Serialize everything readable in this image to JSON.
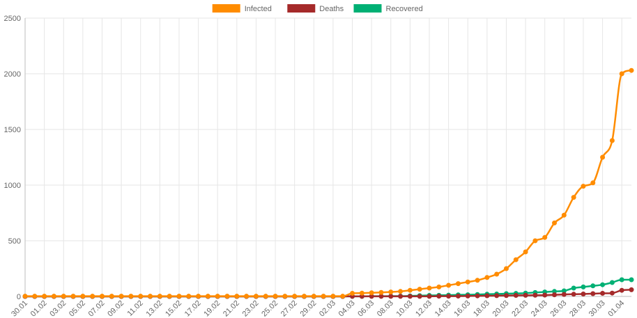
{
  "chart_data": {
    "type": "line",
    "x": [
      "30.01",
      "31.01",
      "01.02",
      "02.02",
      "03.02",
      "04.02",
      "05.02",
      "06.02",
      "07.02",
      "08.02",
      "09.02",
      "10.02",
      "11.02",
      "12.02",
      "13.02",
      "14.02",
      "15.02",
      "16.02",
      "17.02",
      "18.02",
      "19.02",
      "20.02",
      "21.02",
      "22.02",
      "23.02",
      "24.02",
      "25.02",
      "26.02",
      "27.02",
      "28.02",
      "29.02",
      "01.03",
      "02.03",
      "03.03",
      "04.03",
      "05.03",
      "06.03",
      "07.03",
      "08.03",
      "09.03",
      "10.03",
      "11.03",
      "12.03",
      "13.03",
      "14.03",
      "15.03",
      "16.03",
      "17.03",
      "18.03",
      "19.03",
      "20.03",
      "21.03",
      "22.03",
      "23.03",
      "24.03",
      "25.03",
      "26.03",
      "27.03",
      "28.03",
      "29.03",
      "30.03",
      "31.03",
      "01.04",
      "02.04"
    ],
    "xticks": [
      "30.01",
      "01.02",
      "03.02",
      "05.02",
      "07.02",
      "09.02",
      "11.02",
      "13.02",
      "15.02",
      "17.02",
      "19.02",
      "21.02",
      "23.02",
      "25.02",
      "27.02",
      "29.02",
      "02.03",
      "04.03",
      "06.03",
      "08.03",
      "10.03",
      "12.03",
      "14.03",
      "16.03",
      "18.03",
      "20.03",
      "22.03",
      "24.03",
      "26.03",
      "28.03",
      "30.03",
      "01.04"
    ],
    "series": [
      {
        "name": "Infected",
        "color": "#ff8c00",
        "values": [
          2,
          2,
          2,
          2,
          2,
          2,
          2,
          2,
          2,
          2,
          2,
          2,
          2,
          2,
          2,
          2,
          2,
          2,
          2,
          2,
          2,
          2,
          2,
          2,
          2,
          2,
          2,
          2,
          2,
          2,
          2,
          2,
          2,
          2,
          28,
          30,
          33,
          36,
          40,
          45,
          55,
          65,
          75,
          85,
          100,
          115,
          130,
          145,
          170,
          200,
          250,
          330,
          400,
          500,
          530,
          660,
          730,
          890,
          990,
          1020,
          1250,
          1400,
          2000,
          2030
        ]
      },
      {
        "name": "Deaths",
        "color": "#a52a2a",
        "values": [
          0,
          0,
          0,
          0,
          0,
          0,
          0,
          0,
          0,
          0,
          0,
          0,
          0,
          0,
          0,
          0,
          0,
          0,
          0,
          0,
          0,
          0,
          0,
          0,
          0,
          0,
          0,
          0,
          0,
          0,
          0,
          0,
          0,
          0,
          1,
          1,
          1,
          1,
          1,
          1,
          1,
          1,
          1,
          2,
          2,
          3,
          4,
          5,
          6,
          7,
          8,
          9,
          10,
          11,
          12,
          15,
          18,
          20,
          22,
          25,
          28,
          30,
          55,
          60
        ]
      },
      {
        "name": "Recovered",
        "color": "#00b074",
        "values": [
          0,
          0,
          0,
          0,
          0,
          0,
          0,
          0,
          0,
          0,
          0,
          0,
          0,
          0,
          0,
          0,
          0,
          0,
          0,
          0,
          0,
          0,
          0,
          0,
          0,
          0,
          0,
          0,
          0,
          0,
          0,
          0,
          0,
          0,
          1,
          1,
          2,
          2,
          3,
          3,
          5,
          7,
          9,
          10,
          12,
          14,
          15,
          17,
          20,
          22,
          25,
          27,
          30,
          35,
          40,
          45,
          50,
          75,
          85,
          95,
          105,
          125,
          150,
          150
        ]
      }
    ],
    "yticks": [
      0,
      500,
      1000,
      1500,
      2000,
      2500
    ],
    "ylim": [
      0,
      2500
    ],
    "grid": true,
    "legend": "top-center",
    "title": "",
    "xlabel": "",
    "ylabel": ""
  }
}
